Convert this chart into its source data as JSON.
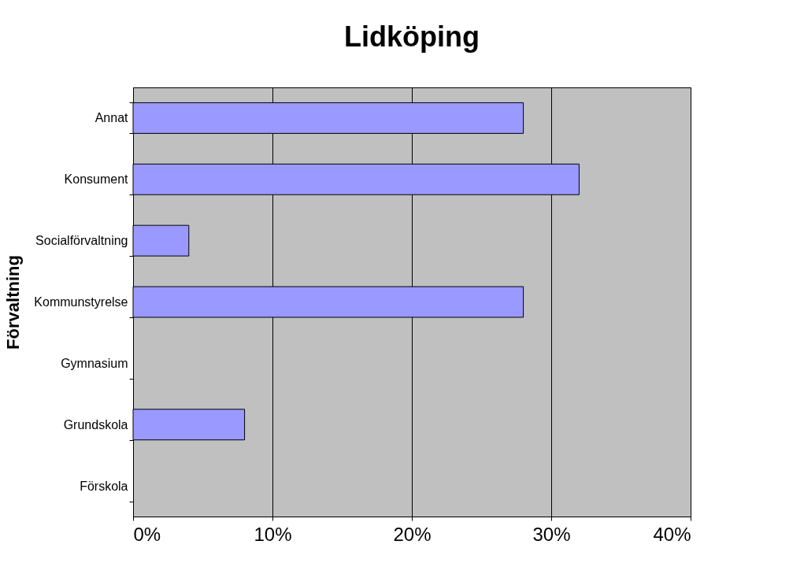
{
  "chart_data": {
    "type": "bar",
    "orientation": "horizontal",
    "title": "Lidköping",
    "ylabel": "Förvaltning",
    "categories": [
      "Annat",
      "Konsument",
      "Socialförvaltning",
      "Kommunstyrelse",
      "Gymnasium",
      "Grundskola",
      "Förskola"
    ],
    "values": [
      28,
      32,
      4,
      28,
      0,
      8,
      0
    ],
    "color": "#9999ff",
    "xlim": [
      0,
      40
    ],
    "xticks": [
      {
        "value": 0,
        "label": "0%"
      },
      {
        "value": 10,
        "label": "10%"
      },
      {
        "value": 20,
        "label": "20%"
      },
      {
        "value": 30,
        "label": "30%"
      },
      {
        "value": 40,
        "label": "40%"
      }
    ],
    "grid": "x"
  }
}
